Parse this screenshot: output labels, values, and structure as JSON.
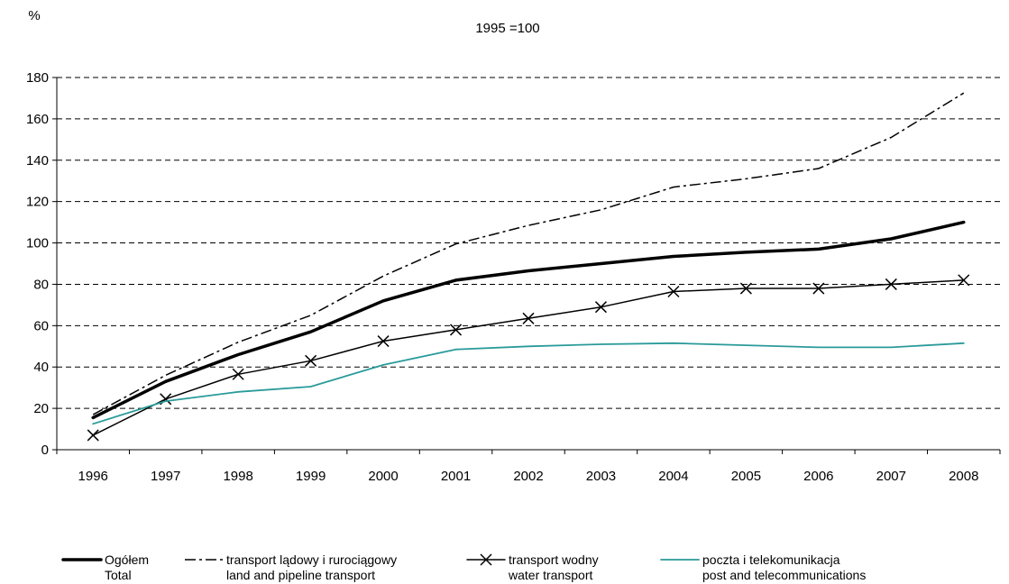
{
  "chart_data": {
    "type": "line",
    "unit_label": "%",
    "subtitle": "1995 =100",
    "categories": [
      "1996",
      "1997",
      "1998",
      "1999",
      "2000",
      "2001",
      "2002",
      "2003",
      "2004",
      "2005",
      "2006",
      "2007",
      "2008"
    ],
    "ylim": [
      0,
      180
    ],
    "yticks": [
      0,
      20,
      40,
      60,
      80,
      100,
      120,
      140,
      160,
      180
    ],
    "grid": true,
    "legend_position": "bottom",
    "series": [
      {
        "name": "Ogółem",
        "name_en": "Total",
        "style": "thick-solid",
        "color": "#000000",
        "values": [
          15.5,
          33,
          46,
          57,
          72,
          82,
          86.5,
          90,
          93.5,
          95.5,
          97,
          102,
          110
        ]
      },
      {
        "name": "transport lądowy i rurociągowy",
        "name_en": "land and pipeline transport",
        "style": "dash-dot",
        "color": "#000000",
        "values": [
          17,
          36,
          52,
          65,
          84,
          99.5,
          108.5,
          116,
          127,
          131,
          136,
          151,
          172.5
        ]
      },
      {
        "name": "transport wodny",
        "name_en": "water transport",
        "style": "solid-x-marker",
        "color": "#000000",
        "values": [
          7,
          24.5,
          36.5,
          43,
          52.5,
          58,
          63.5,
          69,
          76.5,
          78,
          78,
          80,
          82
        ]
      },
      {
        "name": "poczta i telekomunikacja",
        "name_en": "post and telecommunications",
        "style": "solid",
        "color": "#2a9a9a",
        "values": [
          12.5,
          23.5,
          28,
          30.5,
          41,
          48.5,
          50,
          51,
          51.5,
          50.5,
          49.5,
          49.5,
          51.5
        ]
      }
    ]
  }
}
